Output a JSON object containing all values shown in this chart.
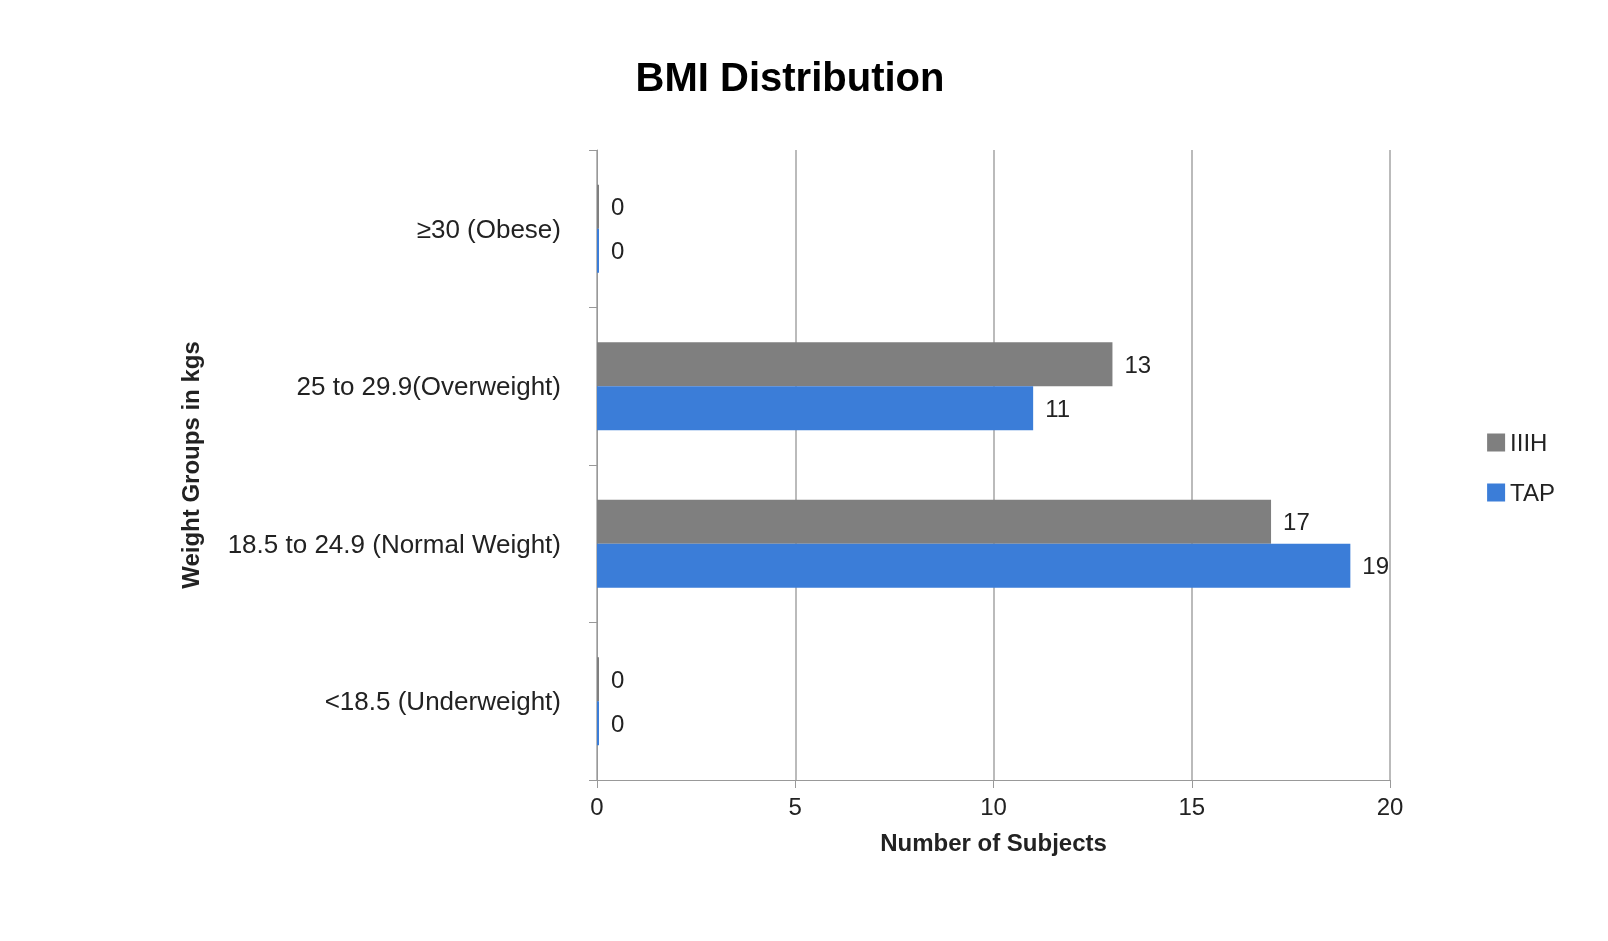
{
  "chart_data": {
    "type": "bar",
    "orientation": "horizontal",
    "title": "BMI Distribution",
    "xlabel": "Number of Subjects",
    "ylabel": "Weight Groups in kgs",
    "categories": [
      "≥30 (Obese)",
      "25 to 29.9(Overweight)",
      "18.5 to 24.9 (Normal Weight)",
      "<18.5 (Underweight)"
    ],
    "series": [
      {
        "name": "IIIH",
        "color": "#7f7f7f",
        "values": [
          0,
          13,
          17,
          0
        ]
      },
      {
        "name": "TAP",
        "color": "#3b7dd8",
        "values": [
          0,
          11,
          19,
          0
        ]
      }
    ],
    "xlim": [
      0,
      20
    ],
    "xticks": [
      0,
      5,
      10,
      15,
      20
    ],
    "grid": "x",
    "legend": "right",
    "data_labels": true
  }
}
